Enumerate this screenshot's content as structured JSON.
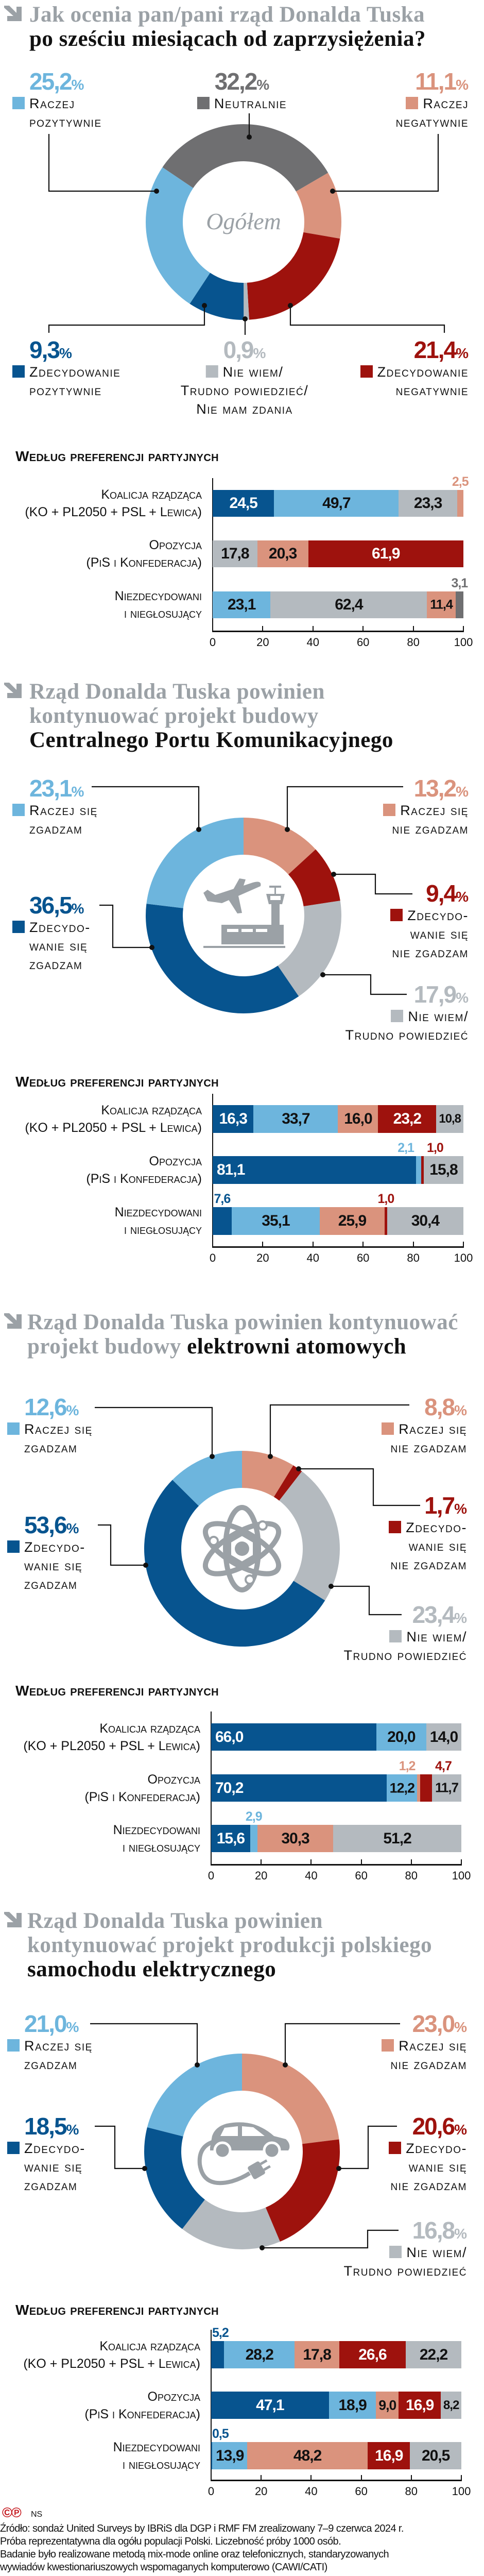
{
  "colors": {
    "db": "#07548f",
    "lb": "#6db5dd",
    "pk": "#da937d",
    "rd": "#9e120d",
    "lg": "#b4babf",
    "dg": "#6f6f71",
    "title_grey": "#9ba1a6"
  },
  "percent_sign": "%",
  "sections": [
    {
      "title": [
        [
          {
            "t": "Jak ocenia pan/pani rząd Donalda Tuska",
            "tone": "grey"
          }
        ],
        [
          {
            "t": "po sześciu miesiącach od zaprzysiężenia?",
            "tone": "black"
          }
        ]
      ]
    },
    {
      "title": [
        [
          {
            "t": "Rząd Donalda Tuska powinien",
            "tone": "grey"
          }
        ],
        [
          {
            "t": "kontynuować projekt budowy",
            "tone": "grey"
          }
        ],
        [
          {
            "t": "Centralnego Portu Komunikacyjnego",
            "tone": "black"
          }
        ]
      ]
    },
    {
      "title": [
        [
          {
            "t": "Rząd Donalda Tuska powinien kontynuować",
            "tone": "grey"
          }
        ],
        [
          {
            "t": "projekt budowy ",
            "tone": "grey"
          },
          {
            "t": "elektrowni atomowych",
            "tone": "black"
          }
        ]
      ]
    },
    {
      "title": [
        [
          {
            "t": "Rząd Donalda Tuska powinien",
            "tone": "grey"
          }
        ],
        [
          {
            "t": "kontynuować projekt produkcji polskiego",
            "tone": "grey"
          }
        ],
        [
          {
            "t": "samochodu elektrycznego",
            "tone": "black"
          }
        ]
      ]
    }
  ],
  "chart_data": [
    {
      "type": "pie",
      "variant": "donut",
      "center_label": "Ogółem",
      "slices": [
        {
          "label": "Neutralnie",
          "lines": [
            "Neutralnie"
          ],
          "value": 32.2,
          "value_text": "32,2",
          "color": "dg"
        },
        {
          "label": "Raczej negatywnie",
          "lines": [
            "Raczej",
            "negatywnie"
          ],
          "value": 11.1,
          "value_text": "11,1",
          "color": "pk"
        },
        {
          "label": "Zdecydowanie negatywnie",
          "lines": [
            "Zdecydowanie",
            "negatywnie"
          ],
          "value": 21.4,
          "value_text": "21,4",
          "color": "rd"
        },
        {
          "label": "Nie wiem / Trudno powiedzieć / Nie mam zdania",
          "lines": [
            "Nie wiem/",
            "Trudno powiedzieć/",
            "Nie mam zdania"
          ],
          "value": 0.9,
          "value_text": "0,9",
          "color": "lg"
        },
        {
          "label": "Zdecydowanie pozytywnie",
          "lines": [
            "Zdecydowanie",
            "pozytywnie"
          ],
          "value": 9.3,
          "value_text": "9,3",
          "color": "db"
        },
        {
          "label": "Raczej pozytywnie",
          "lines": [
            "Raczej",
            "pozytywnie"
          ],
          "value": 25.2,
          "value_text": "25,2",
          "color": "lb"
        }
      ]
    },
    {
      "type": "bar",
      "stacked": true,
      "orientation": "horizontal",
      "title": "Według preferencji partyjnych",
      "xlim": [
        0,
        100
      ],
      "xticks": [
        "0",
        "20",
        "40",
        "60",
        "80",
        "100"
      ],
      "categories": [
        {
          "lines": [
            "Koalicja rządząca",
            "(KO + PL2050 + PSL + Lewica)"
          ]
        },
        {
          "lines": [
            "Opozycja",
            "(PiS i Konfederacja)"
          ]
        },
        {
          "lines": [
            "Niezdecydowani",
            "i niegłosujący"
          ]
        }
      ],
      "rows": [
        {
          "segments": [
            {
              "v": 24.5,
              "t": "24,5",
              "c": "db"
            },
            {
              "v": 49.7,
              "t": "49,7",
              "c": "lb"
            },
            {
              "v": 23.3,
              "t": "23,3",
              "c": "lg"
            },
            {
              "v": 2.5,
              "t": "2,5",
              "c": "pk"
            }
          ]
        },
        {
          "segments": [
            {
              "v": 17.8,
              "t": "17,8",
              "c": "lg"
            },
            {
              "v": 20.3,
              "t": "20,3",
              "c": "pk"
            },
            {
              "v": 61.9,
              "t": "61,9",
              "c": "rd"
            }
          ]
        },
        {
          "segments": [
            {
              "v": 23.1,
              "t": "23,1",
              "c": "lb"
            },
            {
              "v": 62.4,
              "t": "62,4",
              "c": "lg"
            },
            {
              "v": 11.4,
              "t": "11,4",
              "c": "pk"
            },
            {
              "v": 3.1,
              "t": "3,1",
              "c": "dg"
            }
          ]
        }
      ]
    },
    {
      "type": "pie",
      "variant": "donut",
      "slices": [
        {
          "label": "Raczej się nie zgadzam",
          "lines": [
            "Raczej się",
            "nie zgadzam"
          ],
          "value": 13.2,
          "value_text": "13,2",
          "color": "pk"
        },
        {
          "label": "Zdecydowanie się nie zgadzam",
          "lines": [
            "Zdecydo-",
            "wanie się",
            "nie zgadzam"
          ],
          "value": 9.4,
          "value_text": "9,4",
          "color": "rd"
        },
        {
          "label": "Nie wiem / Trudno powiedzieć",
          "lines": [
            "Nie wiem/",
            "Trudno powiedzieć"
          ],
          "value": 17.9,
          "value_text": "17,9",
          "color": "lg"
        },
        {
          "label": "Zdecydowanie się zgadzam",
          "lines": [
            "Zdecydo-",
            "wanie się",
            "zgadzam"
          ],
          "value": 36.5,
          "value_text": "36,5",
          "color": "db"
        },
        {
          "label": "Raczej się zgadzam",
          "lines": [
            "Raczej się",
            "zgadzam"
          ],
          "value": 23.1,
          "value_text": "23,1",
          "color": "lb"
        }
      ]
    },
    {
      "type": "bar",
      "stacked": true,
      "orientation": "horizontal",
      "title": "Według preferencji partyjnych",
      "xlim": [
        0,
        100
      ],
      "xticks": [
        "0",
        "20",
        "40",
        "60",
        "80",
        "100"
      ],
      "categories": [
        {
          "lines": [
            "Koalicja rządząca",
            "(KO + PL2050 + PSL + Lewica)"
          ]
        },
        {
          "lines": [
            "Opozycja",
            "(PiS i Konfederacja)"
          ]
        },
        {
          "lines": [
            "Niezdecydowani",
            "i niegłosujący"
          ]
        }
      ],
      "rows": [
        {
          "segments": [
            {
              "v": 16.3,
              "t": "16,3",
              "c": "db"
            },
            {
              "v": 33.7,
              "t": "33,7",
              "c": "lb"
            },
            {
              "v": 16.0,
              "t": "16,0",
              "c": "pk"
            },
            {
              "v": 23.2,
              "t": "23,2",
              "c": "rd"
            },
            {
              "v": 10.8,
              "t": "10,8",
              "c": "lg"
            }
          ]
        },
        {
          "segments": [
            {
              "v": 81.1,
              "t": "81,1",
              "c": "db"
            },
            {
              "v": 2.1,
              "t": "2,1",
              "c": "lb"
            },
            {
              "v": 1.0,
              "t": "1,0",
              "c": "rd"
            },
            {
              "v": 15.8,
              "t": "15,8",
              "c": "lg"
            }
          ]
        },
        {
          "segments": [
            {
              "v": 7.6,
              "t": "7,6",
              "c": "db"
            },
            {
              "v": 35.1,
              "t": "35,1",
              "c": "lb"
            },
            {
              "v": 25.9,
              "t": "25,9",
              "c": "pk"
            },
            {
              "v": 1.0,
              "t": "1,0",
              "c": "rd"
            },
            {
              "v": 30.4,
              "t": "30,4",
              "c": "lg"
            }
          ]
        }
      ]
    },
    {
      "type": "pie",
      "variant": "donut",
      "slices": [
        {
          "label": "Raczej się nie zgadzam",
          "lines": [
            "Raczej się",
            "nie zgadzam"
          ],
          "value": 8.8,
          "value_text": "8,8",
          "color": "pk"
        },
        {
          "label": "Zdecydowanie się nie zgadzam",
          "lines": [
            "Zdecydo-",
            "wanie się",
            "nie zgadzam"
          ],
          "value": 1.7,
          "value_text": "1,7",
          "color": "rd"
        },
        {
          "label": "Nie wiem / Trudno powiedzieć",
          "lines": [
            "Nie wiem/",
            "Trudno powiedzieć"
          ],
          "value": 23.4,
          "value_text": "23,4",
          "color": "lg"
        },
        {
          "label": "Zdecydowanie się zgadzam",
          "lines": [
            "Zdecydo-",
            "wanie się",
            "zgadzam"
          ],
          "value": 53.6,
          "value_text": "53,6",
          "color": "db"
        },
        {
          "label": "Raczej się zgadzam",
          "lines": [
            "Raczej się",
            "zgadzam"
          ],
          "value": 12.6,
          "value_text": "12,6",
          "color": "lb"
        }
      ]
    },
    {
      "type": "bar",
      "stacked": true,
      "orientation": "horizontal",
      "title": "Według preferencji partyjnych",
      "xlim": [
        0,
        100
      ],
      "xticks": [
        "0",
        "20",
        "40",
        "60",
        "80",
        "100"
      ],
      "categories": [
        {
          "lines": [
            "Koalicja rządząca",
            "(KO + PL2050 + PSL + Lewica)"
          ]
        },
        {
          "lines": [
            "Opozycja",
            "(PiS i Konfederacja)"
          ]
        },
        {
          "lines": [
            "Niezdecydowani",
            "i niegłosujący"
          ]
        }
      ],
      "rows": [
        {
          "segments": [
            {
              "v": 66.0,
              "t": "66,0",
              "c": "db"
            },
            {
              "v": 20.0,
              "t": "20,0",
              "c": "lb"
            },
            {
              "v": 14.0,
              "t": "14,0",
              "c": "lg"
            }
          ]
        },
        {
          "segments": [
            {
              "v": 70.2,
              "t": "70,2",
              "c": "db"
            },
            {
              "v": 12.2,
              "t": "12,2",
              "c": "lb"
            },
            {
              "v": 1.2,
              "t": "1,2",
              "c": "pk"
            },
            {
              "v": 4.7,
              "t": "4,7",
              "c": "rd"
            },
            {
              "v": 11.7,
              "t": "11,7",
              "c": "lg"
            }
          ]
        },
        {
          "segments": [
            {
              "v": 15.6,
              "t": "15,6",
              "c": "db"
            },
            {
              "v": 2.9,
              "t": "2,9",
              "c": "lb"
            },
            {
              "v": 30.3,
              "t": "30,3",
              "c": "pk"
            },
            {
              "v": 51.2,
              "t": "51,2",
              "c": "lg"
            }
          ]
        }
      ]
    },
    {
      "type": "pie",
      "variant": "donut",
      "slices": [
        {
          "label": "Raczej się nie zgadzam",
          "lines": [
            "Raczej się",
            "nie zgadzam"
          ],
          "value": 23.0,
          "value_text": "23,0",
          "color": "pk"
        },
        {
          "label": "Zdecydowanie się nie zgadzam",
          "lines": [
            "Zdecydo-",
            "wanie się",
            "nie zgadzam"
          ],
          "value": 20.6,
          "value_text": "20,6",
          "color": "rd"
        },
        {
          "label": "Nie wiem / Trudno powiedzieć",
          "lines": [
            "Nie wiem/",
            "Trudno powiedzieć"
          ],
          "value": 16.8,
          "value_text": "16,8",
          "color": "lg"
        },
        {
          "label": "Zdecydowanie się zgadzam",
          "lines": [
            "Zdecydo-",
            "wanie się",
            "zgadzam"
          ],
          "value": 18.5,
          "value_text": "18,5",
          "color": "db"
        },
        {
          "label": "Raczej się zgadzam",
          "lines": [
            "Raczej się",
            "zgadzam"
          ],
          "value": 21.0,
          "value_text": "21,0",
          "color": "lb"
        }
      ]
    },
    {
      "type": "bar",
      "stacked": true,
      "orientation": "horizontal",
      "title": "Według preferencji partyjnych",
      "xlim": [
        0,
        100
      ],
      "xticks": [
        "0",
        "20",
        "40",
        "60",
        "80",
        "100"
      ],
      "categories": [
        {
          "lines": [
            "Koalicja rządząca",
            "(KO + PL2050 + PSL + Lewica)"
          ]
        },
        {
          "lines": [
            "Opozycja",
            "(PiS i Konfederacja)"
          ]
        },
        {
          "lines": [
            "Niezdecydowani",
            "i niegłosujący"
          ]
        }
      ],
      "rows": [
        {
          "segments": [
            {
              "v": 5.2,
              "t": "5,2",
              "c": "db"
            },
            {
              "v": 28.2,
              "t": "28,2",
              "c": "lb"
            },
            {
              "v": 17.8,
              "t": "17,8",
              "c": "pk"
            },
            {
              "v": 26.6,
              "t": "26,6",
              "c": "rd"
            },
            {
              "v": 22.2,
              "t": "22,2",
              "c": "lg"
            }
          ]
        },
        {
          "segments": [
            {
              "v": 47.1,
              "t": "47,1",
              "c": "db"
            },
            {
              "v": 18.9,
              "t": "18,9",
              "c": "lb"
            },
            {
              "v": 9.0,
              "t": "9,0",
              "c": "pk"
            },
            {
              "v": 16.9,
              "t": "16,9",
              "c": "rd"
            },
            {
              "v": 8.2,
              "t": "8,2",
              "c": "lg"
            }
          ]
        },
        {
          "segments": [
            {
              "v": 0.5,
              "t": "0,5",
              "c": "db"
            },
            {
              "v": 13.9,
              "t": "13,9",
              "c": "lb"
            },
            {
              "v": 48.2,
              "t": "48,2",
              "c": "pk"
            },
            {
              "v": 16.9,
              "t": "16,9",
              "c": "rd"
            },
            {
              "v": 20.5,
              "t": "20,5",
              "c": "lg"
            }
          ]
        }
      ]
    }
  ],
  "footer": {
    "copyright_icons": "©℗",
    "author": "NS",
    "source_lines": [
      "Źródło: sondaż United Surveys by IBRiS dla DGP i RMF FM zrealizowany 7–9 czerwca 2024 r.",
      "Próba reprezentatywna dla ogółu populacji Polski. Liczebność próby 1000 osób.",
      "Badanie było realizowane metodą mix-mode online oraz telefonicznych, standaryzowanych",
      "wywiadów kwestionariuszowych wspomaganych komputerowo (CAWI/CATI)"
    ]
  }
}
